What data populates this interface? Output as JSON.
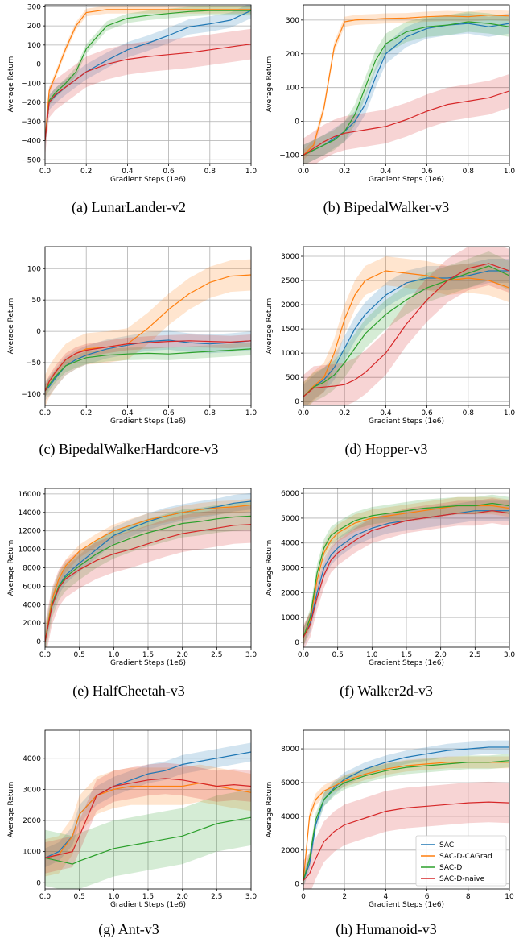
{
  "colors": {
    "SAC": "#1f77b4",
    "SAC-D-CAGrad": "#ff7f0e",
    "SAC-D": "#2ca02c",
    "SAC-D-naive": "#d62728"
  },
  "legend": {
    "placement": "lower-right",
    "panel": 7,
    "entries": [
      "SAC",
      "SAC-D-CAGrad",
      "SAC-D",
      "SAC-D-naive"
    ]
  },
  "chart_data": [
    {
      "type": "line",
      "caption": "(a) LunarLander-v2",
      "xlabel": "Gradient Steps (1e6)",
      "ylabel": "Average Return",
      "xlim": [
        0,
        1.0
      ],
      "ylim": [
        -520,
        310
      ],
      "xticks": [
        "0.0",
        "0.2",
        "0.4",
        "0.6",
        "0.8",
        "1.0"
      ],
      "yticks": [
        "-500",
        "-400",
        "-300",
        "-200",
        "-100",
        "0",
        "100",
        "200",
        "300"
      ],
      "x": [
        0,
        0.02,
        0.05,
        0.1,
        0.15,
        0.2,
        0.3,
        0.4,
        0.5,
        0.6,
        0.7,
        0.8,
        0.9,
        1.0
      ],
      "series": [
        {
          "name": "SAC",
          "values": [
            -400,
            -200,
            -165,
            -120,
            -80,
            -40,
            20,
            75,
            110,
            150,
            195,
            210,
            230,
            280
          ],
          "spread": 40
        },
        {
          "name": "SAC-D-CAGrad",
          "values": [
            -400,
            -140,
            -60,
            80,
            200,
            270,
            285,
            285,
            285,
            285,
            285,
            285,
            285,
            285
          ],
          "spread": 20
        },
        {
          "name": "SAC-D",
          "values": [
            -400,
            -190,
            -150,
            -100,
            -40,
            80,
            200,
            240,
            255,
            265,
            275,
            280,
            280,
            280
          ],
          "spread": 25
        },
        {
          "name": "SAC-D-naive",
          "values": [
            -400,
            -200,
            -160,
            -120,
            -80,
            -40,
            0,
            25,
            40,
            50,
            60,
            75,
            90,
            105
          ],
          "spread": 80
        }
      ]
    },
    {
      "type": "line",
      "caption": "(b) BipedalWalker-v3",
      "xlabel": "Gradient Steps (1e6)",
      "ylabel": "Average Return",
      "xlim": [
        0,
        1.0
      ],
      "ylim": [
        -125,
        345
      ],
      "xticks": [
        "0.0",
        "0.2",
        "0.4",
        "0.6",
        "0.8",
        "1.0"
      ],
      "yticks": [
        "-100",
        "0",
        "100",
        "200",
        "300"
      ],
      "x": [
        0,
        0.05,
        0.1,
        0.15,
        0.2,
        0.25,
        0.3,
        0.35,
        0.4,
        0.5,
        0.6,
        0.7,
        0.8,
        0.9,
        1.0
      ],
      "series": [
        {
          "name": "SAC",
          "values": [
            -100,
            -85,
            -70,
            -50,
            -30,
            0,
            50,
            130,
            200,
            250,
            275,
            285,
            290,
            280,
            290
          ],
          "spread": 30
        },
        {
          "name": "SAC-D-CAGrad",
          "values": [
            -100,
            -70,
            40,
            220,
            295,
            300,
            302,
            303,
            305,
            306,
            310,
            312,
            310,
            315,
            312
          ],
          "spread": 15
        },
        {
          "name": "SAC-D",
          "values": [
            -100,
            -85,
            -70,
            -55,
            -30,
            20,
            100,
            180,
            230,
            265,
            280,
            285,
            295,
            290,
            280
          ],
          "spread": 30
        },
        {
          "name": "SAC-D-naive",
          "values": [
            -100,
            -80,
            -60,
            -45,
            -35,
            -30,
            -25,
            -20,
            -15,
            5,
            30,
            50,
            60,
            70,
            90
          ],
          "spread": 50
        }
      ]
    },
    {
      "type": "line",
      "caption": "(c) BipedalWalkerHardcore-v3",
      "xlabel": "Gradient Steps (1e6)",
      "ylabel": "Average Return",
      "xlim": [
        0,
        1.0
      ],
      "ylim": [
        -118,
        135
      ],
      "xticks": [
        "0.0",
        "0.2",
        "0.4",
        "0.6",
        "0.8",
        "1.0"
      ],
      "yticks": [
        "-100",
        "-50",
        "0",
        "50",
        "100"
      ],
      "x": [
        0,
        0.02,
        0.05,
        0.1,
        0.15,
        0.2,
        0.3,
        0.4,
        0.5,
        0.6,
        0.7,
        0.8,
        0.9,
        1.0
      ],
      "series": [
        {
          "name": "SAC",
          "values": [
            -95,
            -88,
            -75,
            -55,
            -45,
            -38,
            -28,
            -22,
            -16,
            -14,
            -18,
            -20,
            -18,
            -15
          ],
          "spread": 15
        },
        {
          "name": "SAC-D-CAGrad",
          "values": [
            -95,
            -80,
            -65,
            -45,
            -35,
            -28,
            -25,
            -20,
            5,
            35,
            60,
            78,
            88,
            90
          ],
          "spread": 25
        },
        {
          "name": "SAC-D",
          "values": [
            -95,
            -85,
            -72,
            -55,
            -48,
            -42,
            -38,
            -36,
            -35,
            -36,
            -34,
            -32,
            -30,
            -28
          ],
          "spread": 10
        },
        {
          "name": "SAC-D-naive",
          "values": [
            -95,
            -80,
            -65,
            -45,
            -35,
            -30,
            -25,
            -20,
            -18,
            -16,
            -15,
            -16,
            -17,
            -15
          ],
          "spread": 10
        }
      ]
    },
    {
      "type": "line",
      "caption": "(d) Hopper-v3",
      "xlabel": "Gradient Steps (1e6)",
      "ylabel": "Average Return",
      "xlim": [
        0,
        1.0
      ],
      "ylim": [
        -80,
        3200
      ],
      "xticks": [
        "0.0",
        "0.2",
        "0.4",
        "0.6",
        "0.8",
        "1.0"
      ],
      "yticks": [
        "0",
        "500",
        "1000",
        "1500",
        "2000",
        "2500",
        "3000"
      ],
      "x": [
        0,
        0.05,
        0.1,
        0.15,
        0.2,
        0.25,
        0.3,
        0.4,
        0.5,
        0.6,
        0.7,
        0.8,
        0.9,
        1.0
      ],
      "series": [
        {
          "name": "SAC",
          "values": [
            100,
            300,
            450,
            700,
            1100,
            1500,
            1800,
            2200,
            2450,
            2550,
            2550,
            2600,
            2700,
            2700
          ],
          "spread": 250
        },
        {
          "name": "SAC-D-CAGrad",
          "values": [
            100,
            320,
            500,
            1000,
            1700,
            2200,
            2500,
            2700,
            2650,
            2600,
            2500,
            2550,
            2500,
            2350
          ],
          "spread": 300
        },
        {
          "name": "SAC-D",
          "values": [
            100,
            300,
            400,
            550,
            800,
            1100,
            1400,
            1800,
            2100,
            2350,
            2500,
            2650,
            2800,
            2600
          ],
          "spread": 300
        },
        {
          "name": "SAC-D-naive",
          "values": [
            100,
            280,
            300,
            320,
            350,
            450,
            600,
            1000,
            1600,
            2100,
            2500,
            2750,
            2850,
            2700
          ],
          "spread": 450
        }
      ]
    },
    {
      "type": "line",
      "caption": "(e) HalfCheetah-v3",
      "xlabel": "Gradient Steps (1e6)",
      "ylabel": "Average Return",
      "xlim": [
        0,
        3.0
      ],
      "ylim": [
        -600,
        16600
      ],
      "xticks": [
        "0.0",
        "0.5",
        "1.0",
        "1.5",
        "2.0",
        "2.5",
        "3.0"
      ],
      "yticks": [
        "0",
        "2000",
        "4000",
        "6000",
        "8000",
        "10000",
        "12000",
        "14000",
        "16000"
      ],
      "x": [
        0,
        0.1,
        0.2,
        0.3,
        0.5,
        0.75,
        1.0,
        1.25,
        1.5,
        1.75,
        2.0,
        2.25,
        2.5,
        2.75,
        3.0
      ],
      "series": [
        {
          "name": "SAC",
          "values": [
            0,
            4000,
            6000,
            7200,
            8500,
            10000,
            11500,
            12300,
            13000,
            13600,
            14000,
            14300,
            14600,
            15000,
            15200
          ],
          "spread": 900
        },
        {
          "name": "SAC-D-CAGrad",
          "values": [
            0,
            4500,
            6800,
            8200,
            9800,
            11000,
            12000,
            12600,
            13200,
            13600,
            14000,
            14300,
            14500,
            14600,
            14800
          ],
          "spread": 700
        },
        {
          "name": "SAC-D",
          "values": [
            0,
            4000,
            6000,
            7000,
            8200,
            9500,
            10500,
            11200,
            11800,
            12300,
            12800,
            13000,
            13300,
            13500,
            13600
          ],
          "spread": 1500
        },
        {
          "name": "SAC-D-naive",
          "values": [
            0,
            3800,
            5800,
            6800,
            7800,
            8800,
            9500,
            10000,
            10600,
            11200,
            11700,
            12000,
            12300,
            12600,
            12700
          ],
          "spread": 2000
        }
      ]
    },
    {
      "type": "line",
      "caption": "(f) Walker2d-v3",
      "xlabel": "Gradient Steps (1e6)",
      "ylabel": "Average Return",
      "xlim": [
        0,
        3.0
      ],
      "ylim": [
        -200,
        6200
      ],
      "xticks": [
        "0.0",
        "0.5",
        "1.0",
        "1.5",
        "2.0",
        "2.5",
        "3.0"
      ],
      "yticks": [
        "0",
        "1000",
        "2000",
        "3000",
        "4000",
        "5000",
        "6000"
      ],
      "x": [
        0,
        0.1,
        0.2,
        0.3,
        0.4,
        0.5,
        0.75,
        1.0,
        1.25,
        1.5,
        1.75,
        2.0,
        2.25,
        2.5,
        2.75,
        3.0
      ],
      "series": [
        {
          "name": "SAC",
          "values": [
            200,
            800,
            2000,
            3000,
            3500,
            3800,
            4300,
            4600,
            4800,
            4900,
            5000,
            5100,
            5200,
            5300,
            5300,
            5300
          ],
          "spread": 400
        },
        {
          "name": "SAC-D-CAGrad",
          "values": [
            200,
            900,
            2500,
            3600,
            4100,
            4400,
            4800,
            5000,
            5100,
            5200,
            5300,
            5400,
            5500,
            5500,
            5500,
            5400
          ],
          "spread": 350
        },
        {
          "name": "SAC-D",
          "values": [
            200,
            1000,
            2800,
            3800,
            4300,
            4500,
            4900,
            5100,
            5200,
            5300,
            5400,
            5450,
            5500,
            5500,
            5600,
            5500
          ],
          "spread": 350
        },
        {
          "name": "SAC-D-naive",
          "values": [
            200,
            700,
            1800,
            2700,
            3300,
            3600,
            4100,
            4500,
            4700,
            4900,
            5000,
            5100,
            5200,
            5200,
            5300,
            5200
          ],
          "spread": 500
        }
      ]
    },
    {
      "type": "line",
      "caption": "(g) Ant-v3",
      "xlabel": "Gradient Steps (1e6)",
      "ylabel": "Average Return",
      "xlim": [
        0,
        3.0
      ],
      "ylim": [
        -200,
        4900
      ],
      "xticks": [
        "0.0",
        "0.5",
        "1.0",
        "1.5",
        "2.0",
        "2.5",
        "3.0"
      ],
      "yticks": [
        "0",
        "1000",
        "2000",
        "3000",
        "4000"
      ],
      "x": [
        0,
        0.2,
        0.4,
        0.5,
        0.75,
        1.0,
        1.25,
        1.5,
        1.75,
        2.0,
        2.25,
        2.5,
        2.75,
        3.0
      ],
      "series": [
        {
          "name": "SAC",
          "values": [
            800,
            1000,
            1500,
            2200,
            2800,
            3100,
            3300,
            3500,
            3600,
            3800,
            3900,
            4000,
            4100,
            4200
          ],
          "spread": 300
        },
        {
          "name": "SAC-D-CAGrad",
          "values": [
            800,
            900,
            1500,
            2200,
            2800,
            3000,
            3100,
            3100,
            3100,
            3100,
            3200,
            3100,
            3000,
            2900
          ],
          "spread": 600
        },
        {
          "name": "SAC-D",
          "values": [
            800,
            700,
            600,
            700,
            900,
            1100,
            1200,
            1300,
            1400,
            1500,
            1700,
            1900,
            2000,
            2100
          ],
          "spread": 900
        },
        {
          "name": "SAC-D-naive",
          "values": [
            800,
            900,
            1000,
            1500,
            2800,
            3100,
            3200,
            3300,
            3350,
            3300,
            3200,
            3100,
            3150,
            3100
          ],
          "spread": 500
        }
      ]
    },
    {
      "type": "line",
      "caption": "(h) Humanoid-v3",
      "xlabel": "Gradient Steps (1e6)",
      "ylabel": "Average Return",
      "xlim": [
        0,
        10
      ],
      "ylim": [
        -300,
        9100
      ],
      "xticks": [
        "0",
        "2",
        "4",
        "6",
        "8",
        "10"
      ],
      "yticks": [
        "0",
        "2000",
        "4000",
        "6000",
        "8000"
      ],
      "x": [
        0,
        0.3,
        0.6,
        1.0,
        1.5,
        2.0,
        3.0,
        4.0,
        5.0,
        6.0,
        7.0,
        8.0,
        9.0,
        10.0
      ],
      "series": [
        {
          "name": "SAC",
          "values": [
            200,
            1200,
            3500,
            5000,
            5700,
            6200,
            6800,
            7200,
            7500,
            7700,
            7900,
            8000,
            8100,
            8100
          ],
          "spread": 400
        },
        {
          "name": "SAC-D-CAGrad",
          "values": [
            200,
            4000,
            5000,
            5500,
            5800,
            6100,
            6500,
            6800,
            7000,
            7100,
            7200,
            7200,
            7200,
            7200
          ],
          "spread": 350
        },
        {
          "name": "SAC-D",
          "values": [
            200,
            1500,
            3800,
            5000,
            5600,
            6000,
            6400,
            6700,
            6900,
            7000,
            7100,
            7200,
            7200,
            7300
          ],
          "spread": 400
        },
        {
          "name": "SAC-D-naive",
          "values": [
            200,
            600,
            1500,
            2500,
            3100,
            3500,
            3900,
            4300,
            4500,
            4600,
            4700,
            4800,
            4850,
            4800
          ],
          "spread": 1200
        }
      ]
    }
  ]
}
